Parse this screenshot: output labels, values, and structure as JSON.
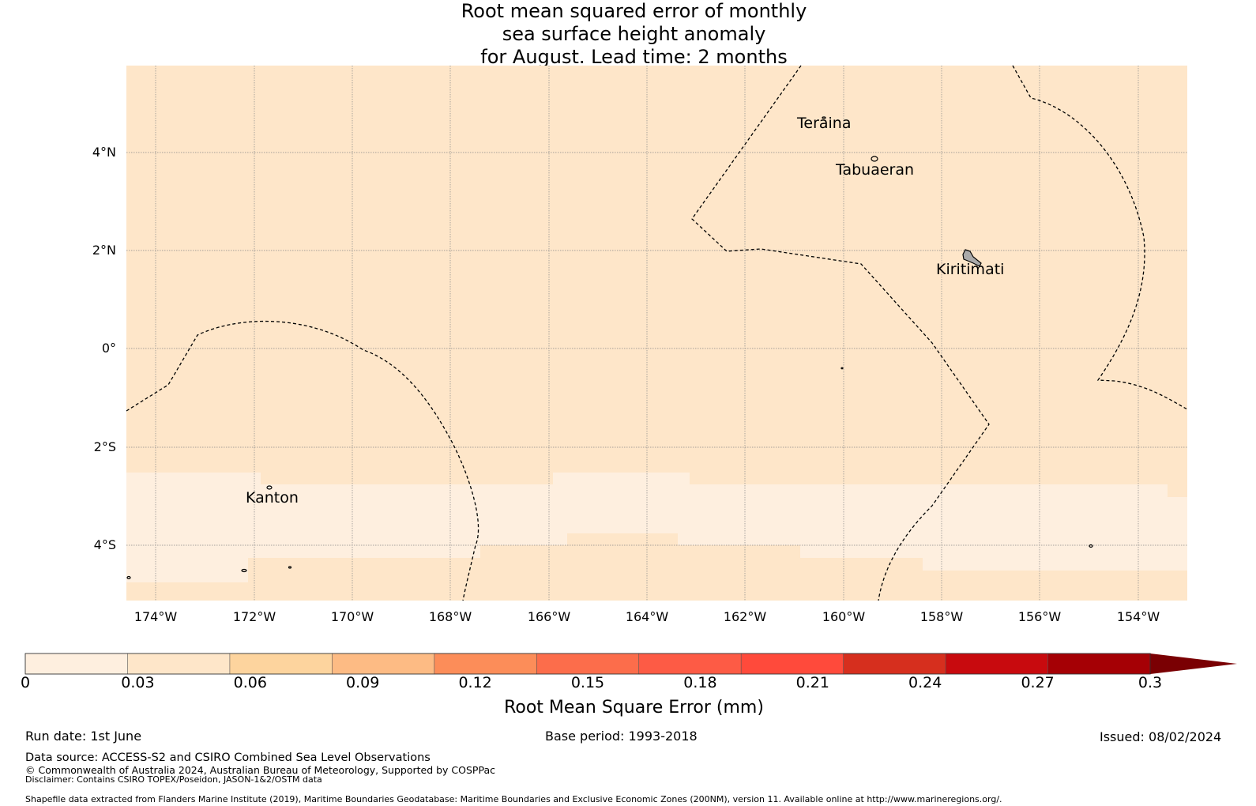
{
  "title": {
    "line1": "Root mean squared error of monthly",
    "line2": "sea surface height anomaly",
    "line3": "for August. Lead time: 2 months"
  },
  "map": {
    "lat_labels": [
      "4°N",
      "2°N",
      "0°",
      "2°S",
      "4°S"
    ],
    "lon_labels": [
      "174°W",
      "172°W",
      "170°W",
      "168°W",
      "166°W",
      "164°W",
      "162°W",
      "160°W",
      "158°W",
      "156°W",
      "154°W"
    ],
    "places": [
      "Teraina",
      "Tabuaeran",
      "Kiritimati",
      "Kanton"
    ],
    "colors": {
      "ocean_main": "#fee6c9",
      "ocean_low": "#feefdf",
      "grid": "#888888",
      "eez": "#000000",
      "land": "#aaaaaa"
    }
  },
  "colorbar": {
    "label": "Root Mean Square Error (mm)",
    "ticks": [
      "0",
      "0.03",
      "0.06",
      "0.09",
      "0.12",
      "0.15",
      "0.18",
      "0.21",
      "0.24",
      "0.27",
      "0.3"
    ],
    "colors": [
      "#feefdf",
      "#fee6c9",
      "#fdd49e",
      "#fdbb84",
      "#fc8d59",
      "#fc6d4b",
      "#fd5b45",
      "#ff4a3b",
      "#d62f1e",
      "#c80a0e",
      "#a50005",
      "#7a0003"
    ]
  },
  "footer": {
    "run_date": "Run date: 1st June",
    "base_period": "Base period: 1993-2018",
    "issued": "Issued: 08/02/2024",
    "data_source": "Data source: ACCESS-S2 and CSIRO Combined Sea Level Observations",
    "copyright": "© Commonwealth of Australia 2024, Australian Bureau of Meteorology, Supported by COSPPac",
    "disclaimer": "Disclaimer: Contains CSIRO TOPEX/Poseidon, JASON-1&2/OSTM data",
    "shapefile": "Shapefile data extracted from Flanders Marine Institute (2019), Maritime Boundaries Geodatabase: Maritime Boundaries and Exclusive Economic Zones (200NM), version 11. Available online at http://www.marineregions.org/."
  }
}
